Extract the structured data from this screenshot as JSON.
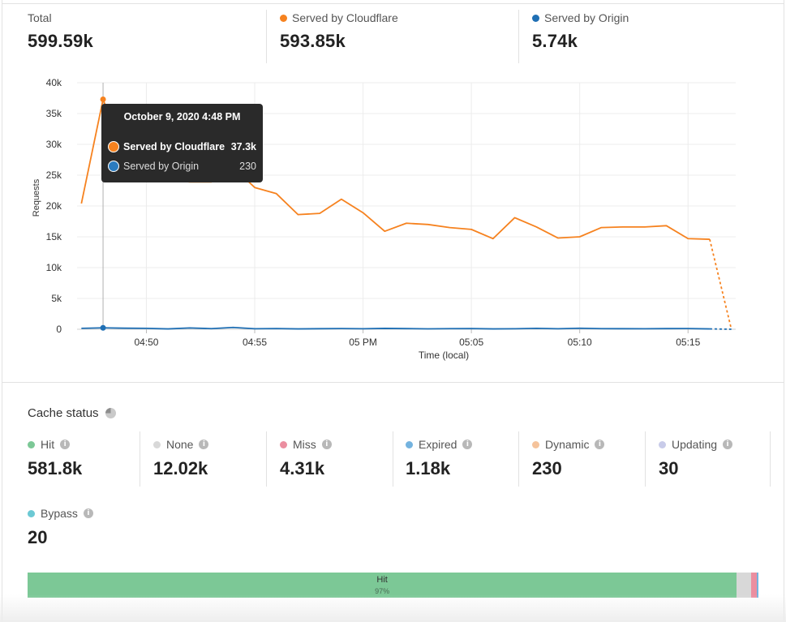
{
  "summary": {
    "total": {
      "label": "Total",
      "value": "599.59k"
    },
    "cloudflare": {
      "label": "Served by Cloudflare",
      "value": "593.85k",
      "color": "#f6821f"
    },
    "origin": {
      "label": "Served by Origin",
      "value": "5.74k",
      "color": "#1f6fb4"
    }
  },
  "tooltip": {
    "title": "October 9, 2020 4:48 PM",
    "rows": [
      {
        "name": "Served by Cloudflare",
        "value": "37.3k",
        "color": "#f6821f"
      },
      {
        "name": "Served by Origin",
        "value": "230",
        "color": "#2a7bbf"
      }
    ]
  },
  "chart_data": {
    "type": "line",
    "xlabel": "Time (local)",
    "ylabel": "Requests",
    "x_tick_labels": [
      "04:50",
      "04:55",
      "05 PM",
      "05:05",
      "05:10",
      "05:15"
    ],
    "x_tick_minutes": [
      50,
      55,
      60,
      65,
      70,
      75
    ],
    "y_tick_labels": [
      "0",
      "5k",
      "10k",
      "15k",
      "20k",
      "25k",
      "30k",
      "35k",
      "40k"
    ],
    "ylim": [
      0,
      40000
    ],
    "xlim_minutes": [
      46.8,
      77.2
    ],
    "x_minutes": [
      47,
      48,
      49,
      50,
      51,
      52,
      53,
      54,
      55,
      56,
      57,
      58,
      59,
      60,
      61,
      62,
      63,
      64,
      65,
      66,
      67,
      68,
      69,
      70,
      71,
      72,
      73,
      74,
      75,
      76,
      77
    ],
    "grid": true,
    "series": [
      {
        "name": "Served by Cloudflare",
        "color": "#f6821f",
        "values": [
          20400,
          37300,
          28200,
          26000,
          24300,
          23900,
          23900,
          26300,
          23000,
          22000,
          18600,
          18800,
          21100,
          18900,
          15900,
          17200,
          17000,
          16500,
          16200,
          14700,
          18100,
          16600,
          14800,
          15000,
          16500,
          16600,
          16600,
          16800,
          14700,
          14600,
          0
        ],
        "dashed_last_segment": true
      },
      {
        "name": "Served by Origin",
        "color": "#1f6fb4",
        "values": [
          150,
          230,
          170,
          150,
          60,
          210,
          100,
          300,
          80,
          120,
          60,
          90,
          120,
          80,
          140,
          110,
          70,
          100,
          120,
          60,
          80,
          150,
          80,
          160,
          100,
          90,
          80,
          110,
          120,
          60,
          0
        ],
        "dashed_last_segment": true
      }
    ],
    "hover_minute": 48
  },
  "cache_status": {
    "title": "Cache status",
    "items": [
      {
        "label": "Hit",
        "value": "581.8k",
        "color": "#7cc896"
      },
      {
        "label": "None",
        "value": "12.02k",
        "color": "#d8d8d8"
      },
      {
        "label": "Miss",
        "value": "4.31k",
        "color": "#eb8ea0"
      },
      {
        "label": "Expired",
        "value": "1.18k",
        "color": "#74b3df"
      },
      {
        "label": "Dynamic",
        "value": "230",
        "color": "#f5c39b"
      },
      {
        "label": "Updating",
        "value": "30",
        "color": "#c8cbe9"
      },
      {
        "label": "Bypass",
        "value": "20",
        "color": "#6cc9d4"
      }
    ],
    "bar": [
      {
        "label": "Hit",
        "pct": "97%",
        "share": 0.9703,
        "color": "#7cc896"
      },
      {
        "label": "",
        "pct": "",
        "share": 0.02,
        "color": "#d8d8d8"
      },
      {
        "label": "",
        "pct": "",
        "share": 0.0072,
        "color": "#eb8ea0"
      },
      {
        "label": "",
        "pct": "",
        "share": 0.0025,
        "color": "#74b3df"
      }
    ]
  }
}
